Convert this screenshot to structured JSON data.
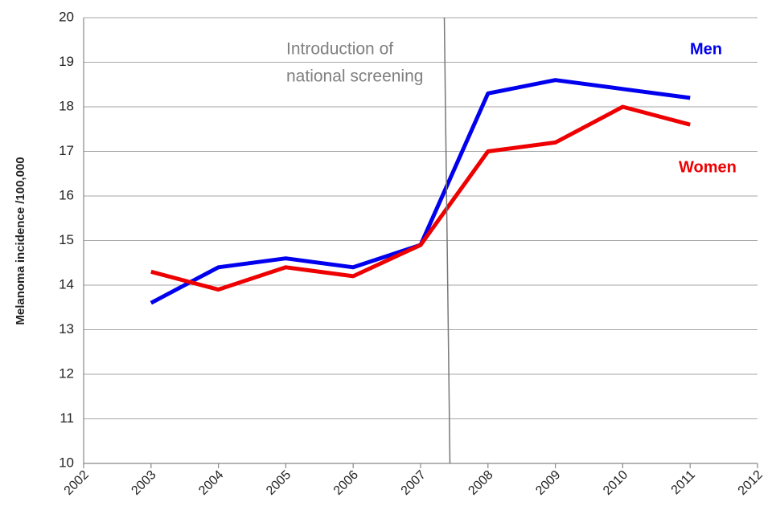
{
  "chart_data": {
    "type": "line",
    "y_label": "Melanoma incidence /100,000",
    "x": [
      2003,
      2004,
      2005,
      2006,
      2007,
      2008,
      2009,
      2010,
      2011
    ],
    "series": [
      {
        "name": "Men",
        "color": "#0000ee",
        "values": [
          13.6,
          14.4,
          14.6,
          14.4,
          14.9,
          18.3,
          18.6,
          18.4,
          18.2
        ]
      },
      {
        "name": "Women",
        "color": "#ee0000",
        "values": [
          14.3,
          13.9,
          14.4,
          14.2,
          14.9,
          17.0,
          17.2,
          18.0,
          17.6
        ]
      }
    ],
    "xlim": [
      2002,
      2012
    ],
    "xticks": [
      2002,
      2003,
      2004,
      2005,
      2006,
      2007,
      2008,
      2009,
      2010,
      2011,
      2012
    ],
    "ylim": [
      10,
      20
    ],
    "yticks": [
      10,
      11,
      12,
      13,
      14,
      15,
      16,
      17,
      18,
      19,
      20
    ],
    "grid": true,
    "annotation": {
      "lines": [
        "Introduction of",
        "national screening"
      ],
      "x": 2007.4
    }
  }
}
